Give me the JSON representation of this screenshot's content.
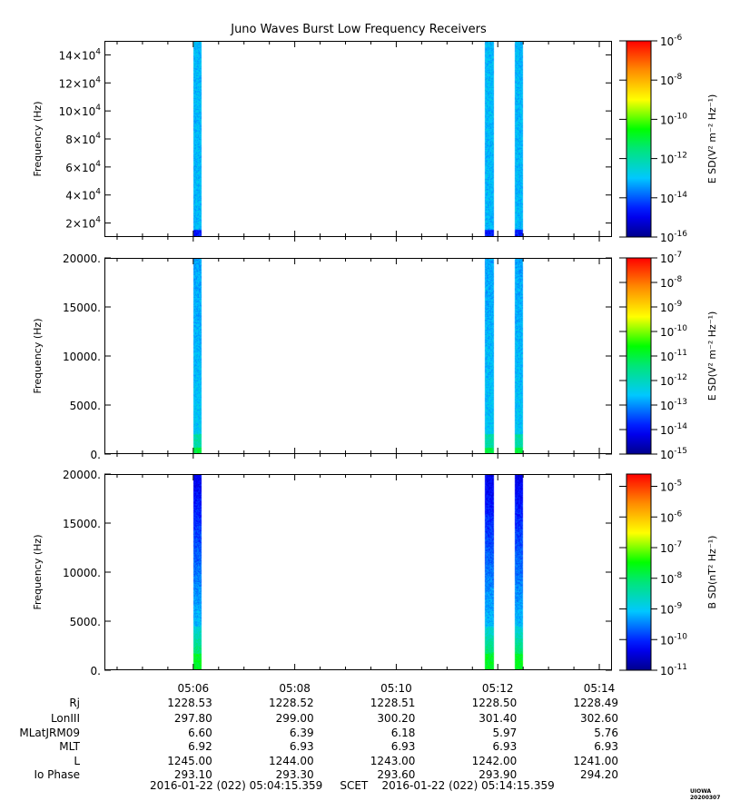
{
  "title": "Juno Waves Burst Low Frequency Receivers",
  "colors": {
    "spectrogram_high": "#1ea0e6",
    "spectrogram_low_green": "#22dd44",
    "spectrogram_dark_blue": "#0a1ee0"
  },
  "chart_data": [
    {
      "type": "heatmap",
      "ylabel": "Frequency (Hz)",
      "yticks": [
        "2×10^4",
        "4×10^4",
        "6×10^4",
        "8×10^4",
        "10×10^4",
        "12×10^4",
        "14×10^4"
      ],
      "ylim": [
        10000,
        150000
      ],
      "colorbar": {
        "label": "E SD(V² m⁻² Hz⁻¹)",
        "ticks": [
          "10-16",
          "10-14",
          "10-12",
          "10-10",
          "10-8",
          "10-6"
        ],
        "min_exp": -16,
        "max_exp": -6
      },
      "bursts": [
        {
          "start": "05:06:00",
          "end": "05:06:10"
        },
        {
          "start": "05:11:45",
          "end": "05:11:55"
        },
        {
          "start": "05:12:20",
          "end": "05:12:30"
        }
      ]
    },
    {
      "type": "heatmap",
      "ylabel": "Frequency (Hz)",
      "yticks": [
        "0.",
        "5000.",
        "10000.",
        "15000.",
        "20000."
      ],
      "ylim": [
        0,
        20000
      ],
      "colorbar": {
        "label": "E SD(V² m⁻² Hz⁻¹)",
        "ticks": [
          "10-15",
          "10-14",
          "10-13",
          "10-12",
          "10-11",
          "10-10",
          "10-9",
          "10-8",
          "10-7"
        ],
        "min_exp": -15,
        "max_exp": -7
      },
      "bursts": [
        {
          "start": "05:06:00",
          "end": "05:06:10"
        },
        {
          "start": "05:11:45",
          "end": "05:11:55"
        },
        {
          "start": "05:12:20",
          "end": "05:12:30"
        }
      ]
    },
    {
      "type": "heatmap",
      "ylabel": "Frequency (Hz)",
      "yticks": [
        "0.",
        "5000.",
        "10000.",
        "15000.",
        "20000."
      ],
      "ylim": [
        0,
        20000
      ],
      "colorbar": {
        "label": "B SD(nT² Hz⁻¹)",
        "ticks": [
          "10-11",
          "10-10",
          "10-9",
          "10-8",
          "10-7",
          "10-6",
          "10-5"
        ],
        "min_exp": -11,
        "max_exp": -4.6
      },
      "bursts": [
        {
          "start": "05:06:00",
          "end": "05:06:10"
        },
        {
          "start": "05:11:45",
          "end": "05:11:55"
        },
        {
          "start": "05:12:20",
          "end": "05:12:30"
        }
      ]
    }
  ],
  "xaxis": {
    "start": "05:04:15",
    "end": "05:14:15",
    "ticks": [
      "05:06",
      "05:08",
      "05:10",
      "05:12",
      "05:14"
    ]
  },
  "ephemeris": {
    "labels": [
      "Rj",
      "LonIII",
      "MLatJRM09",
      "MLT",
      "L",
      "Io Phase"
    ],
    "rows": [
      [
        "1228.53",
        "1228.52",
        "1228.51",
        "1228.50",
        "1228.49"
      ],
      [
        "297.80",
        "299.00",
        "300.20",
        "301.40",
        "302.60"
      ],
      [
        "6.60",
        "6.39",
        "6.18",
        "5.97",
        "5.76"
      ],
      [
        "6.92",
        "6.93",
        "6.93",
        "6.93",
        "6.93"
      ],
      [
        "1245.00",
        "1244.00",
        "1243.00",
        "1242.00",
        "1241.00"
      ],
      [
        "293.10",
        "293.30",
        "293.60",
        "293.90",
        "294.20"
      ]
    ]
  },
  "footer": {
    "start": "2016-01-22 (022) 05:04:15.359",
    "scet": "SCET",
    "end": "2016-01-22 (022) 05:14:15.359"
  },
  "stamp": "UIOWA 20200307"
}
